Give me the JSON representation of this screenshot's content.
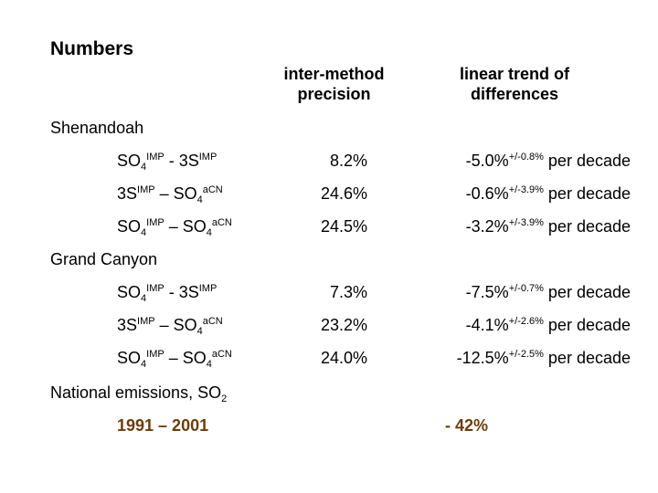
{
  "title": "Numbers",
  "headers": {
    "precision": [
      "inter-method",
      "precision"
    ],
    "trend": [
      "linear trend of",
      "differences"
    ]
  },
  "sections": [
    {
      "name": "Shenandoah",
      "rows": [
        {
          "a": "SO",
          "a_sub": "4",
          "a_sup": "IMP",
          "op": " - ",
          "b": "3S",
          "b_sub": "",
          "b_sup": "IMP",
          "precision": "8.2%",
          "trend": "-5.0%",
          "trend_err": "+/-0.8%",
          "trend_unit": "per decade"
        },
        {
          "a": "3S",
          "a_sub": "",
          "a_sup": "IMP",
          "op": " – ",
          "b": "SO",
          "b_sub": "4",
          "b_sup": "aCN",
          "precision": "24.6%",
          "trend": "-0.6%",
          "trend_err": "+/-3.9%",
          "trend_unit": "per decade"
        },
        {
          "a": "SO",
          "a_sub": "4",
          "a_sup": "IMP",
          "op": " – ",
          "b": "SO",
          "b_sub": "4",
          "b_sup": "aCN",
          "precision": "24.5%",
          "trend": "-3.2%",
          "trend_err": "+/-3.9%",
          "trend_unit": "per decade"
        }
      ]
    },
    {
      "name": "Grand Canyon",
      "rows": [
        {
          "a": "SO",
          "a_sub": "4",
          "a_sup": "IMP",
          "op": " - ",
          "b": "3S",
          "b_sub": "",
          "b_sup": "IMP",
          "precision": "7.3%",
          "trend": "-7.5%",
          "trend_err": "+/-0.7%",
          "trend_unit": "per decade"
        },
        {
          "a": "3S",
          "a_sub": "",
          "a_sup": "IMP",
          "op": " – ",
          "b": "SO",
          "b_sub": "4",
          "b_sup": "aCN",
          "precision": "23.2%",
          "trend": "-4.1%",
          "trend_err": "+/-2.6%",
          "trend_unit": "per decade"
        },
        {
          "a": "SO",
          "a_sub": "4",
          "a_sup": "IMP",
          "op": " – ",
          "b": "SO",
          "b_sub": "4",
          "b_sup": "aCN",
          "precision": "24.0%",
          "trend": "-12.5%",
          "trend_err": "+/-2.5%",
          "trend_unit": "per decade"
        }
      ]
    }
  ],
  "emissions": {
    "label": "National emissions, SO",
    "label_sub": "2",
    "period": "1991 – 2001",
    "change": "- 42%",
    "accent_color": "#6b3d0a"
  }
}
